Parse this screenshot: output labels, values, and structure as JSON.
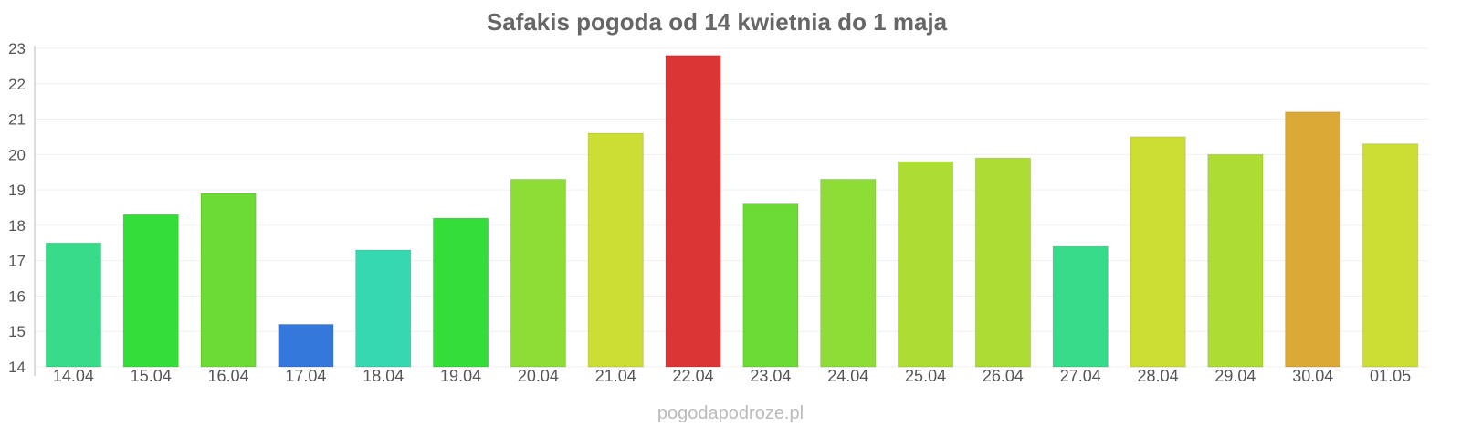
{
  "chart_data": {
    "type": "bar",
    "title": "Safakis pogoda od 14 kwietnia do 1 maja",
    "xlabel": "",
    "ylabel": "",
    "ylim": [
      14,
      23
    ],
    "yticks": [
      14,
      15,
      16,
      17,
      18,
      19,
      20,
      21,
      22,
      23
    ],
    "grid": true,
    "legend": "none",
    "categories": [
      "14.04",
      "15.04",
      "16.04",
      "17.04",
      "18.04",
      "19.04",
      "20.04",
      "21.04",
      "22.04",
      "23.04",
      "24.04",
      "25.04",
      "26.04",
      "27.04",
      "28.04",
      "29.04",
      "30.04",
      "01.05"
    ],
    "values": [
      17.5,
      18.3,
      18.9,
      15.2,
      17.3,
      18.2,
      19.3,
      20.6,
      22.8,
      18.6,
      19.3,
      19.8,
      19.9,
      17.4,
      20.5,
      20.0,
      21.2,
      20.3
    ],
    "colors": [
      "#37db8a",
      "#35dd3a",
      "#6ddb36",
      "#3578db",
      "#35d8b0",
      "#35dd3a",
      "#8ddd36",
      "#ccdd33",
      "#db3535",
      "#6ddb36",
      "#8ddd36",
      "#addd33",
      "#addd33",
      "#37db8a",
      "#ccdd33",
      "#addd33",
      "#dba935",
      "#ccdd33"
    ]
  },
  "credit": "pogodapodroze.pl"
}
